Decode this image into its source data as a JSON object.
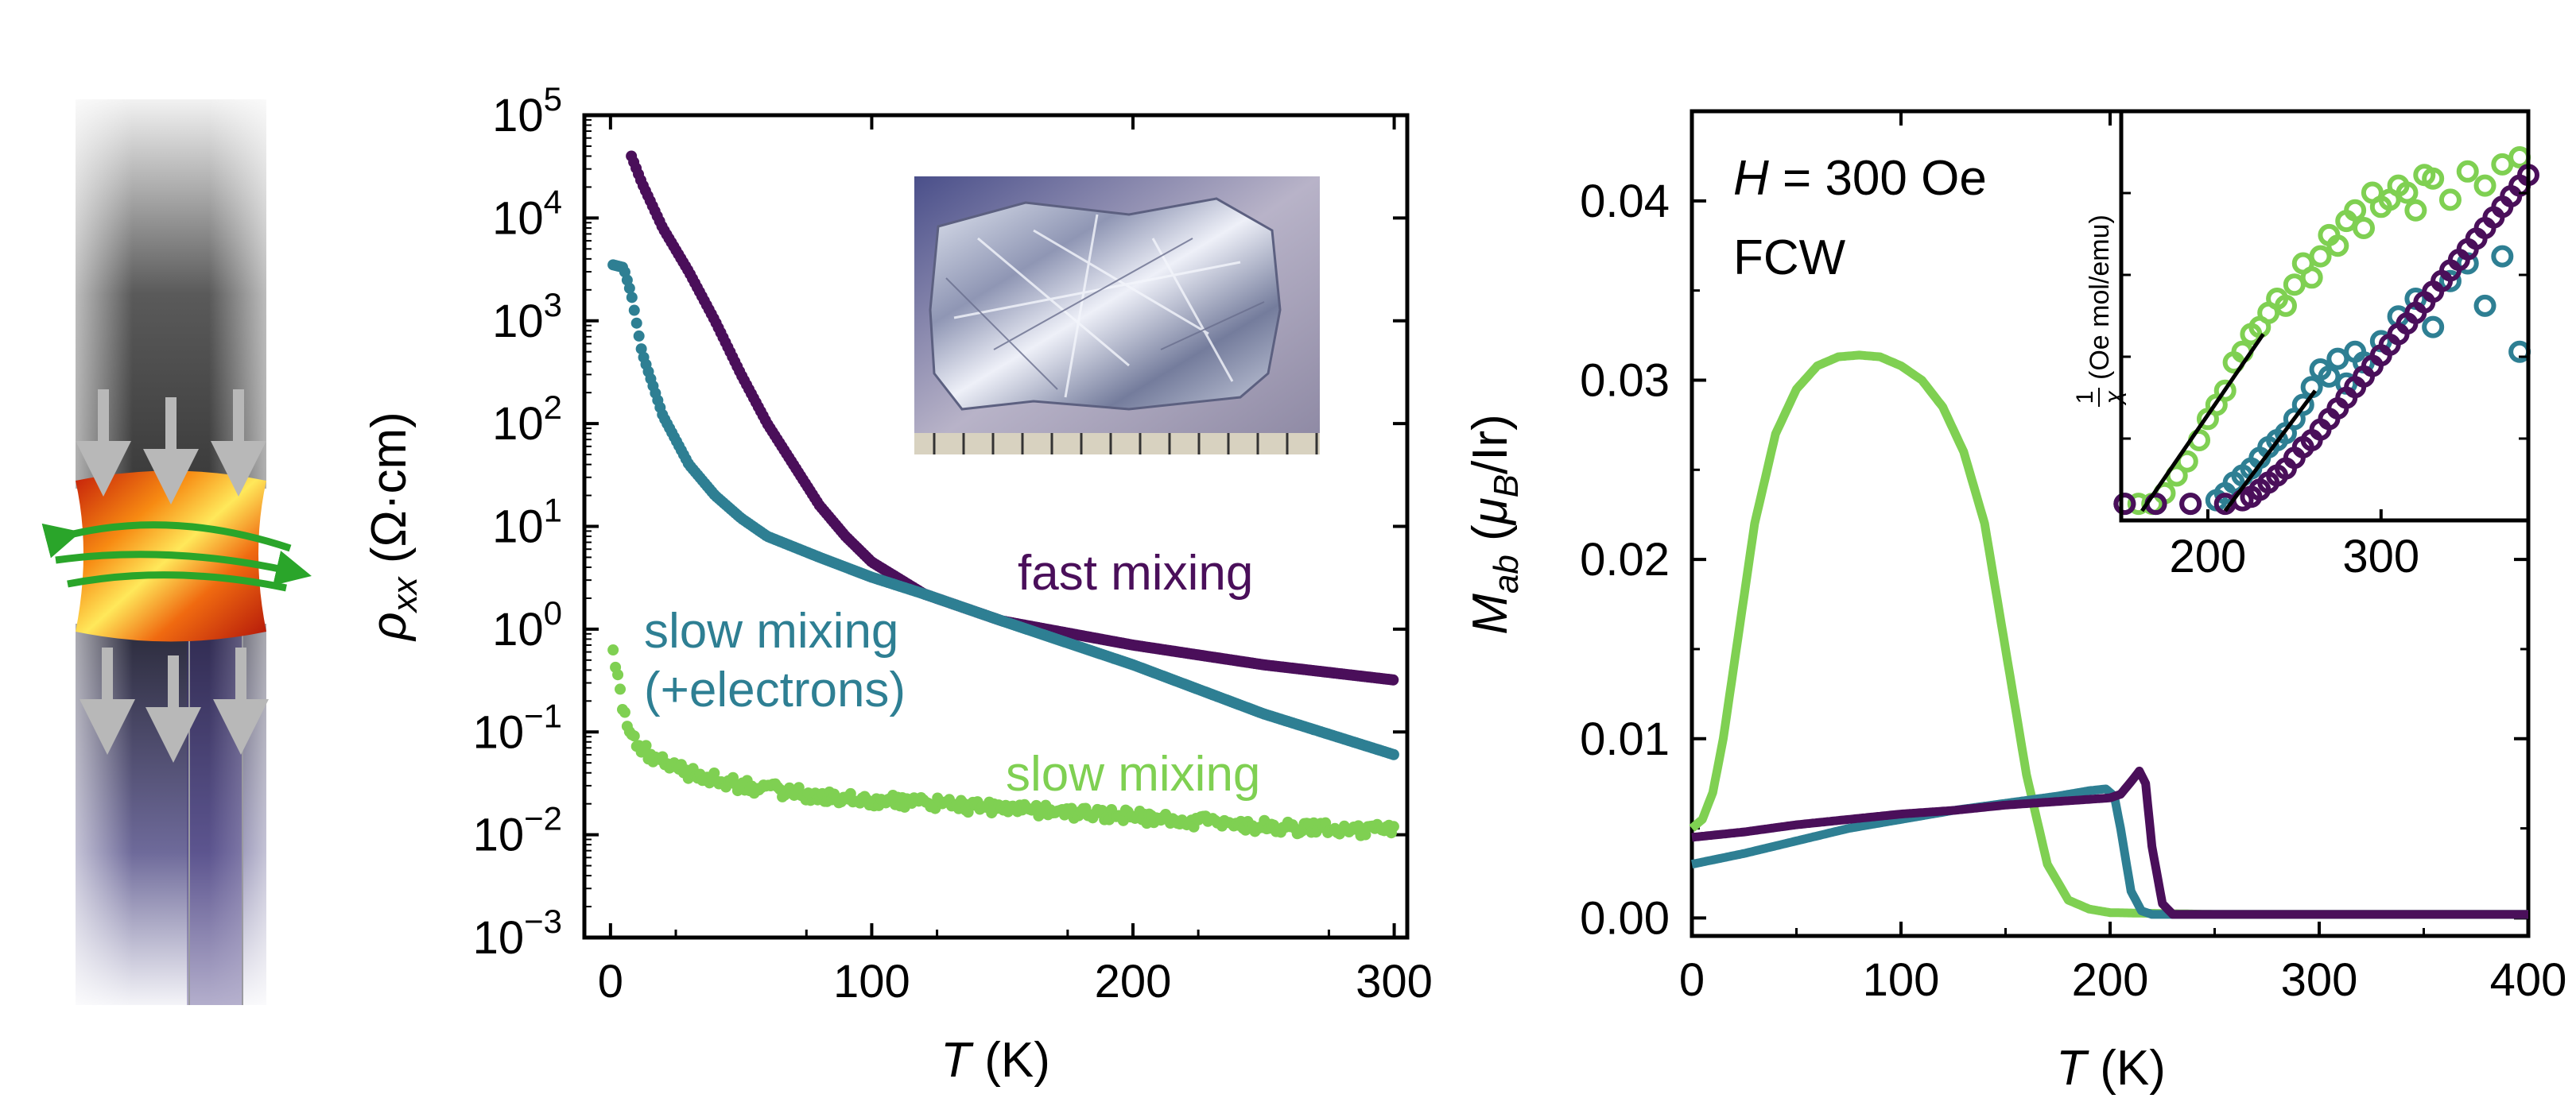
{
  "chart_data": [
    {
      "type": "scatter",
      "panel": "resistivity",
      "xlabel_italic": "T",
      "xlabel_unit": " (K)",
      "ylabel_symbol": "ρ",
      "ylabel_sub": "xx",
      "ylabel_unit": " (Ω·cm)",
      "yscale": "log",
      "xlim": [
        -10,
        305
      ],
      "ylim": [
        0.001,
        100000
      ],
      "x_ticks": [
        0,
        100,
        200,
        300
      ],
      "y_ticks_base": "10",
      "y_ticks_exp": [
        "−3",
        "−2",
        "−1",
        "0",
        "1",
        "2",
        "3",
        "4",
        "5"
      ],
      "series": [
        {
          "name": "fast mixing",
          "color": "#4a0f5a",
          "x": [
            8,
            12,
            20,
            30,
            40,
            50,
            60,
            70,
            80,
            90,
            100,
            120,
            150,
            200,
            250,
            300
          ],
          "y": [
            40000,
            22000,
            8000,
            3000,
            1000,
            300,
            100,
            40,
            16,
            8,
            4.5,
            2.2,
            1.2,
            0.7,
            0.45,
            0.32
          ]
        },
        {
          "name": "slow mixing\n(+electrons)",
          "color": "#2e7f93",
          "x": [
            1,
            5,
            8,
            12,
            20,
            30,
            40,
            50,
            60,
            80,
            100,
            120,
            150,
            200,
            250,
            300
          ],
          "y": [
            3500,
            3300,
            1800,
            500,
            120,
            40,
            20,
            12,
            8,
            5,
            3.2,
            2.2,
            1.2,
            0.45,
            0.15,
            0.06
          ]
        },
        {
          "name": "slow mixing",
          "color": "#7fd052",
          "x": [
            1,
            3,
            6,
            10,
            15,
            20,
            30,
            50,
            75,
            100,
            150,
            200,
            250,
            300
          ],
          "y": [
            0.55,
            0.3,
            0.12,
            0.08,
            0.06,
            0.05,
            0.04,
            0.03,
            0.025,
            0.022,
            0.018,
            0.015,
            0.012,
            0.011
          ]
        }
      ]
    },
    {
      "type": "line",
      "panel": "magnetization",
      "xlabel_italic": "T",
      "xlabel_unit": " (K)",
      "ylabel_symbol": "M",
      "ylabel_sub": "ab",
      "ylabel_unit_pre": " (",
      "ylabel_mu": "μ",
      "ylabel_mu_sub": "B",
      "ylabel_unit_post": "/Ir)",
      "annotation_italic": "H",
      "annotation_rest": " = 300 Oe",
      "annotation2": "FCW",
      "xlim": [
        0,
        400
      ],
      "ylim": [
        -0.001,
        0.045
      ],
      "x_ticks": [
        0,
        100,
        200,
        300,
        400
      ],
      "y_ticks": [
        "0.00",
        "0.01",
        "0.02",
        "0.03",
        "0.04"
      ],
      "y_tick_values": [
        0,
        0.01,
        0.02,
        0.03,
        0.04
      ],
      "series": [
        {
          "color": "#7fd052",
          "x": [
            0,
            5,
            10,
            15,
            20,
            30,
            40,
            50,
            60,
            70,
            80,
            90,
            100,
            110,
            120,
            130,
            140,
            150,
            160,
            170,
            180,
            190,
            200,
            250,
            300,
            350,
            400
          ],
          "y": [
            0.005,
            0.0055,
            0.007,
            0.01,
            0.014,
            0.022,
            0.027,
            0.0295,
            0.0308,
            0.0313,
            0.0314,
            0.0313,
            0.0308,
            0.03,
            0.0285,
            0.026,
            0.022,
            0.015,
            0.008,
            0.003,
            0.001,
            0.0005,
            0.0003,
            0.0002,
            0.0002,
            0.0002,
            0.0002
          ]
        },
        {
          "color": "#2e7f93",
          "x": [
            0,
            25,
            50,
            75,
            100,
            125,
            150,
            175,
            190,
            198,
            202,
            205,
            210,
            215,
            220,
            250,
            300,
            350,
            400
          ],
          "y": [
            0.003,
            0.0036,
            0.0043,
            0.005,
            0.0055,
            0.006,
            0.0064,
            0.0068,
            0.0071,
            0.0072,
            0.0068,
            0.005,
            0.0015,
            0.0004,
            0.0002,
            0.0002,
            0.0002,
            0.0002,
            0.0002
          ]
        },
        {
          "color": "#4a0f5a",
          "x": [
            0,
            25,
            50,
            75,
            100,
            125,
            150,
            175,
            200,
            205,
            210,
            214,
            217,
            220,
            225,
            230,
            250,
            300,
            350,
            400
          ],
          "y": [
            0.0045,
            0.0048,
            0.0052,
            0.0055,
            0.0058,
            0.006,
            0.0063,
            0.0065,
            0.0067,
            0.0069,
            0.0076,
            0.0082,
            0.0075,
            0.004,
            0.0008,
            0.0002,
            0.0002,
            0.0002,
            0.0002,
            0.0002
          ]
        }
      ],
      "inset": {
        "type": "scatter",
        "ylabel_frac_num": "1",
        "ylabel_frac_den": "χ",
        "ylabel_unit": " (Oe mol/emu)",
        "xlim": [
          150,
          385
        ],
        "ylim": [
          0,
          1
        ],
        "x_ticks": [
          200,
          300
        ],
        "series": [
          {
            "color": "#7fd052",
            "x": [
              152,
              160,
              168,
              175,
              182,
              188,
              195,
              200,
              205,
              210,
              215,
              220,
              225,
              230,
              235,
              240,
              245,
              250,
              255,
              260,
              265,
              270,
              275,
              280,
              285,
              290,
              295,
              300,
              305,
              310,
              315,
              320,
              325,
              330,
              340,
              350,
              360,
              370,
              380
            ],
            "y": [
              0.02,
              0.02,
              0.02,
              0.05,
              0.1,
              0.14,
              0.2,
              0.26,
              0.3,
              0.34,
              0.42,
              0.45,
              0.5,
              0.52,
              0.56,
              0.6,
              0.58,
              0.64,
              0.7,
              0.66,
              0.72,
              0.78,
              0.75,
              0.82,
              0.85,
              0.8,
              0.9,
              0.86,
              0.88,
              0.92,
              0.9,
              0.85,
              0.95,
              0.94,
              0.88,
              0.96,
              0.92,
              0.98,
              1.0
            ]
          },
          {
            "color": "#2e7f93",
            "x": [
              152,
              170,
              190,
              205,
              210,
              215,
              220,
              225,
              230,
              235,
              240,
              245,
              250,
              255,
              260,
              265,
              270,
              275,
              280,
              285,
              290,
              300,
              310,
              320,
              330,
              340,
              350,
              360,
              370,
              380
            ],
            "y": [
              0.02,
              0.02,
              0.02,
              0.03,
              0.05,
              0.08,
              0.1,
              0.12,
              0.15,
              0.18,
              0.2,
              0.22,
              0.26,
              0.3,
              0.35,
              0.4,
              0.38,
              0.43,
              0.36,
              0.45,
              0.42,
              0.48,
              0.55,
              0.6,
              0.52,
              0.65,
              0.7,
              0.58,
              0.72,
              0.45
            ]
          },
          {
            "color": "#4a0f5a",
            "x": [
              152,
              170,
              190,
              210,
              220,
              225,
              230,
              235,
              240,
              245,
              250,
              255,
              260,
              265,
              270,
              275,
              280,
              285,
              290,
              295,
              300,
              305,
              310,
              315,
              320,
              325,
              330,
              335,
              340,
              345,
              350,
              355,
              360,
              365,
              370,
              375,
              380,
              385
            ],
            "y": [
              0.02,
              0.02,
              0.02,
              0.02,
              0.03,
              0.04,
              0.06,
              0.08,
              0.1,
              0.12,
              0.15,
              0.18,
              0.2,
              0.23,
              0.26,
              0.29,
              0.32,
              0.35,
              0.38,
              0.41,
              0.44,
              0.47,
              0.5,
              0.53,
              0.56,
              0.59,
              0.62,
              0.65,
              0.68,
              0.71,
              0.74,
              0.77,
              0.8,
              0.83,
              0.86,
              0.89,
              0.92,
              0.95
            ]
          }
        ],
        "fit_lines": [
          {
            "x": [
              162,
              232
            ],
            "y": [
              0.0,
              0.5
            ]
          },
          {
            "x": [
              210,
              262
            ],
            "y": [
              0.0,
              0.34
            ]
          }
        ]
      }
    }
  ],
  "illustration": {
    "description_icon": "float-zone-rod-icon",
    "arrow_color": "#b8b8b8",
    "ring_color": "#2aa52a"
  }
}
